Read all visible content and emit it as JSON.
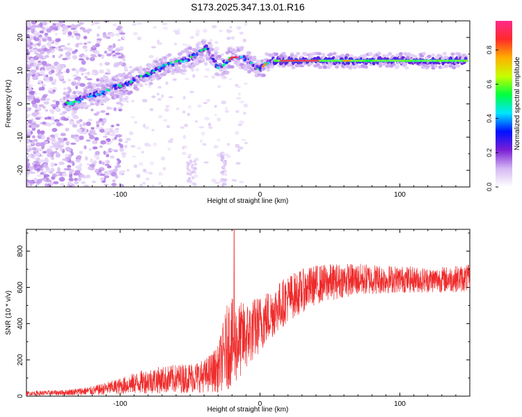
{
  "figure_title": "S173.2025.347.13.01.R16",
  "chart_data": [
    {
      "type": "heatmap",
      "xlabel": "Height of straight line (km)",
      "ylabel": "Frequency (Hz)",
      "xlim": [
        -167,
        150
      ],
      "ylim": [
        -25,
        25
      ],
      "xticks": [
        -100,
        0,
        100
      ],
      "yticks": [
        -20,
        -10,
        0,
        10,
        20
      ],
      "colorbar": {
        "label": "Normalized spectral amplitude",
        "range": [
          0,
          0.97
        ],
        "ticks": [
          0,
          0.2,
          0.4,
          0.6,
          0.8
        ],
        "colormap": [
          "#ffffff",
          "#d4b8f2",
          "#7a1fd6",
          "#0010ff",
          "#00e6ff",
          "#00ff40",
          "#c8ff00",
          "#ffb000",
          "#ff2a2a",
          "#ff2a8a"
        ]
      },
      "ridge": {
        "x": [
          -135,
          -125,
          -115,
          -105,
          -95,
          -85,
          -75,
          -65,
          -55,
          -45,
          -38,
          -30,
          -24,
          -20,
          -14,
          -8,
          -4,
          0,
          4,
          8,
          15,
          30,
          60,
          100,
          148
        ],
        "y": [
          0,
          2,
          3,
          5,
          6,
          8,
          10,
          12,
          13,
          15,
          17,
          11,
          12.5,
          14,
          14,
          13,
          11,
          10.5,
          12,
          13,
          13,
          13,
          13,
          13,
          13
        ]
      }
    },
    {
      "type": "line",
      "xlabel": "Height of straight line (km)",
      "ylabel": "SNR (10 * v/v)",
      "xlim": [
        -167,
        150
      ],
      "ylim": [
        0,
        920
      ],
      "xticks": [
        -100,
        0,
        100
      ],
      "yticks": [
        0,
        200,
        400,
        600,
        800
      ],
      "color": "#ef2b2b",
      "envelope": {
        "x": [
          -167,
          -140,
          -120,
          -100,
          -80,
          -60,
          -40,
          -30,
          -22,
          -18,
          -10,
          0,
          10,
          20,
          30,
          40,
          60,
          80,
          100,
          120,
          150
        ],
        "mean": [
          15,
          20,
          30,
          55,
          85,
          95,
          110,
          150,
          300,
          290,
          330,
          400,
          470,
          540,
          580,
          615,
          640,
          645,
          645,
          640,
          650
        ],
        "amplitude": [
          12,
          15,
          25,
          45,
          70,
          80,
          90,
          130,
          260,
          230,
          190,
          160,
          140,
          130,
          120,
          110,
          95,
          85,
          75,
          70,
          75
        ]
      }
    }
  ]
}
